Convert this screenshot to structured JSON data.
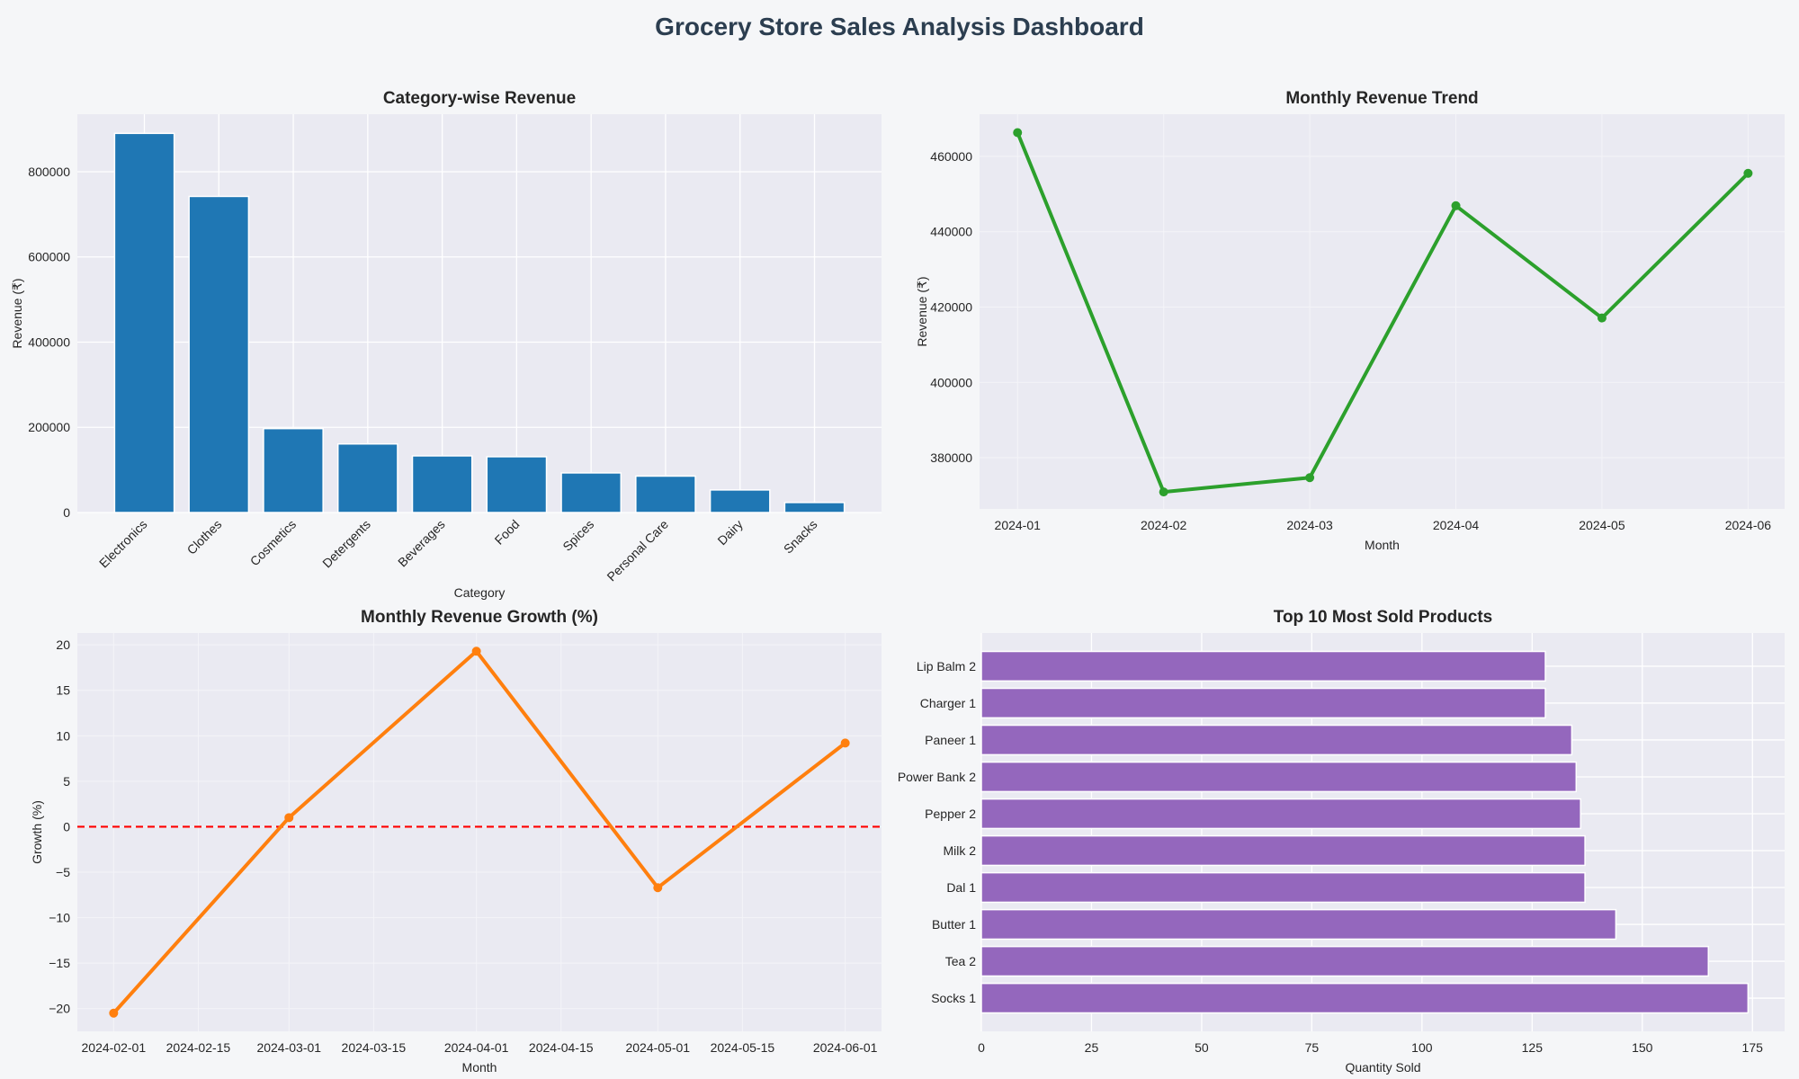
{
  "title": "Grocery Store Sales Analysis Dashboard",
  "colors": {
    "background": "#f5f6f8",
    "axes_bg": "#eaeaf2",
    "grid": "#ffffff",
    "title": "#2c3e50"
  },
  "chart_data": [
    {
      "id": "category",
      "type": "bar",
      "title": "Category-wise Revenue",
      "xlabel": "Category",
      "ylabel": "Revenue (₹)",
      "categories": [
        "Electronics",
        "Clothes",
        "Cosmetics",
        "Detergents",
        "Beverages",
        "Food",
        "Spices",
        "Personal Care",
        "Dairy",
        "Snacks"
      ],
      "values": [
        890000,
        742000,
        197000,
        161000,
        133000,
        131000,
        93000,
        85500,
        53000,
        23500
      ],
      "ylim": [
        0,
        935000
      ],
      "yticks": [
        0,
        200000,
        400000,
        600000,
        800000
      ],
      "color": "#1f77b4",
      "grid": true
    },
    {
      "id": "trend",
      "type": "line",
      "title": "Monthly Revenue Trend",
      "xlabel": "Month",
      "ylabel": "Revenue (₹)",
      "x": [
        "2024-01",
        "2024-02",
        "2024-03",
        "2024-04",
        "2024-05",
        "2024-06"
      ],
      "values": [
        466300,
        370900,
        374700,
        446900,
        417100,
        455500
      ],
      "ylim": [
        366400,
        471200
      ],
      "yticks": [
        380000,
        400000,
        420000,
        440000,
        460000
      ],
      "color": "#2ca02c",
      "marker": "circle",
      "grid": true
    },
    {
      "id": "growth",
      "type": "line",
      "title": "Monthly Revenue Growth (%)",
      "xlabel": "Month",
      "ylabel": "Growth (%)",
      "x": [
        "2024-02-01",
        "2024-03-01",
        "2024-04-01",
        "2024-05-01",
        "2024-06-01"
      ],
      "values": [
        -20.5,
        1.0,
        19.3,
        -6.7,
        9.2
      ],
      "ylim": [
        -22.5,
        21.3
      ],
      "xlim": [
        "2024-01-26",
        "2024-06-07"
      ],
      "yticks": [
        -20,
        -15,
        -10,
        -5,
        0,
        5,
        10,
        15,
        20
      ],
      "xticks": [
        "2024-02-01",
        "2024-02-15",
        "2024-03-01",
        "2024-03-15",
        "2024-04-01",
        "2024-04-15",
        "2024-05-01",
        "2024-05-15",
        "2024-06-01"
      ],
      "reference_line": {
        "y": 0,
        "color": "#ff0000",
        "style": "dashed"
      },
      "color": "#ff7f0e",
      "marker": "circle",
      "grid": true
    },
    {
      "id": "products",
      "type": "bar",
      "orientation": "horizontal",
      "title": "Top 10 Most Sold Products",
      "xlabel": "Quantity Sold",
      "ylabel": "",
      "categories": [
        "Socks 1",
        "Tea 2",
        "Butter 1",
        "Dal 1",
        "Milk 2",
        "Pepper 2",
        "Power Bank 2",
        "Paneer 1",
        "Charger 1",
        "Lip Balm 2"
      ],
      "values": [
        174,
        165,
        144,
        137,
        137,
        136,
        135,
        134,
        128,
        128
      ],
      "xlim": [
        0,
        182.3
      ],
      "xticks": [
        0,
        25,
        50,
        75,
        100,
        125,
        150,
        175
      ],
      "color": "#9467bd",
      "grid": true
    }
  ]
}
